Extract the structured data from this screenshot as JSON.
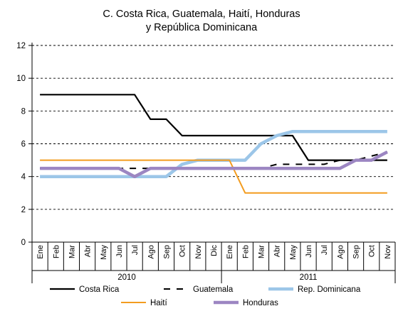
{
  "chart_data": {
    "type": "line",
    "title": "C. Costa Rica, Guatemala, Haití, Honduras",
    "subtitle": "y República Dominicana",
    "xlabel": "",
    "ylabel": "",
    "ylim": [
      0,
      12
    ],
    "yticks": [
      "0",
      "2",
      "4",
      "6",
      "8",
      "10",
      "12"
    ],
    "grid": "dashed horizontal",
    "legend_position": "bottom",
    "categories": [
      "Ene",
      "Feb",
      "Mar",
      "Abr",
      "May",
      "Jun",
      "Jul",
      "Ago",
      "Sep",
      "Oct",
      "Nov",
      "Dic",
      "Ene",
      "Feb",
      "Mar",
      "Abr",
      "May",
      "Jun",
      "Jul",
      "Ago",
      "Sep",
      "Oct",
      "Nov"
    ],
    "years": [
      {
        "label": "2010",
        "start": 0,
        "end": 11
      },
      {
        "label": "2011",
        "start": 12,
        "end": 22
      }
    ],
    "series": [
      {
        "name": "Costa Rica",
        "color": "#000000",
        "dash": "solid",
        "width": 2.2,
        "values": [
          9,
          9,
          9,
          9,
          9,
          9,
          9,
          7.5,
          7.5,
          6.5,
          6.5,
          6.5,
          6.5,
          6.5,
          6.5,
          6.5,
          6.5,
          5,
          5,
          5,
          5,
          5,
          5
        ]
      },
      {
        "name": "Guatemala",
        "color": "#000000",
        "dash": "dashed",
        "width": 2,
        "values": [
          4.5,
          4.5,
          4.5,
          4.5,
          4.5,
          4.5,
          4.5,
          4.5,
          4.5,
          4.5,
          4.5,
          4.5,
          4.5,
          4.5,
          4.5,
          4.75,
          4.75,
          4.75,
          4.75,
          5,
          5,
          5.25,
          5.5
        ]
      },
      {
        "name": "Rep. Dominicana",
        "color": "#9cc6e8",
        "dash": "solid",
        "width": 4.5,
        "values": [
          4,
          4,
          4,
          4,
          4,
          4,
          4,
          4,
          4,
          4.75,
          5,
          5,
          5,
          5,
          6,
          6.5,
          6.75,
          6.75,
          6.75,
          6.75,
          6.75,
          6.75,
          6.75
        ]
      },
      {
        "name": "Haití",
        "color": "#f39c1f",
        "dash": "solid",
        "width": 2,
        "values": [
          5,
          5,
          5,
          5,
          5,
          5,
          5,
          5,
          5,
          5,
          5,
          5,
          5,
          3,
          3,
          3,
          3,
          3,
          3,
          3,
          3,
          3,
          3
        ]
      },
      {
        "name": "Honduras",
        "color": "#9c86c2",
        "dash": "solid",
        "width": 4.5,
        "values": [
          4.5,
          4.5,
          4.5,
          4.5,
          4.5,
          4.5,
          4,
          4.5,
          4.5,
          4.5,
          4.5,
          4.5,
          4.5,
          4.5,
          4.5,
          4.5,
          4.5,
          4.5,
          4.5,
          4.5,
          5,
          5,
          5.5
        ]
      }
    ]
  }
}
